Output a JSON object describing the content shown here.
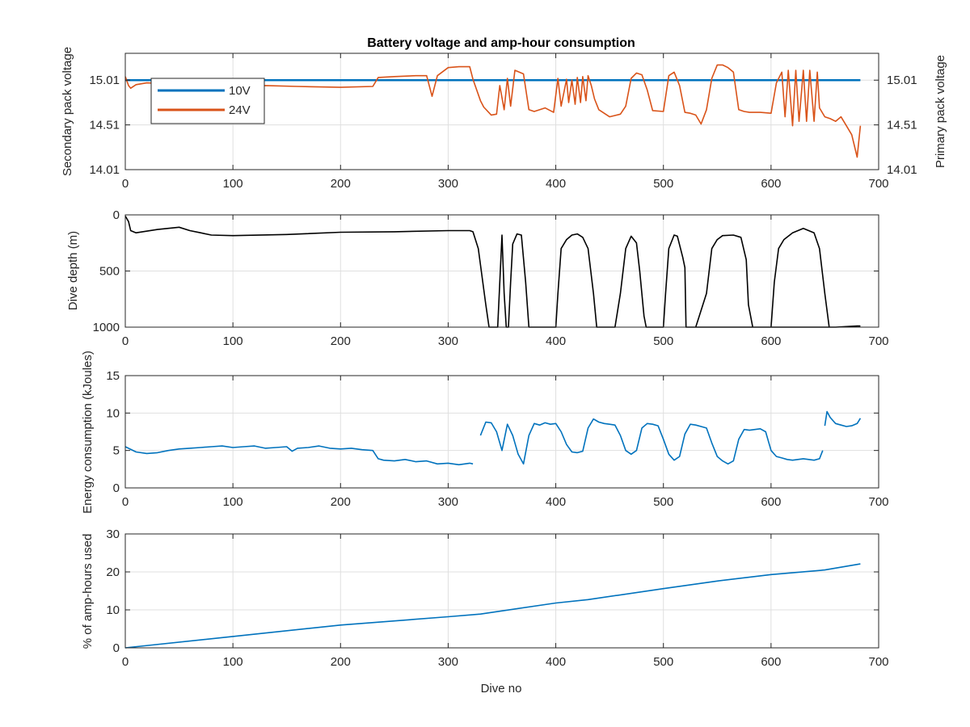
{
  "colors": {
    "blue": "#0072BD",
    "orange": "#D95319",
    "black": "#000000",
    "grid": "#dfdfdf",
    "axis": "#262626"
  },
  "chart_data": [
    {
      "type": "line",
      "title": "Battery voltage and amp-hour consumption",
      "xlabel": "",
      "ylabel_left": "Secondary pack voltage",
      "ylabel_right": "Primary pack voltage",
      "xlim": [
        0,
        700
      ],
      "ylim_left": [
        14.01,
        15.31
      ],
      "ylim_right": [
        14.01,
        15.31
      ],
      "xticks": [
        0,
        100,
        200,
        300,
        400,
        500,
        600,
        700
      ],
      "xtick_labels": [
        "0",
        "100",
        "200",
        "300",
        "400",
        "500",
        "600",
        "700"
      ],
      "yticks_left": [
        14.01,
        14.51,
        15.01
      ],
      "ytick_labels_left": [
        "14.01",
        "14.51",
        "15.01"
      ],
      "yticks_right": [
        14.01,
        14.51,
        15.01
      ],
      "ytick_labels_right": [
        "14.01",
        "14.51",
        "15.01"
      ],
      "grid": true,
      "legend": "top-left",
      "series": [
        {
          "name": "10V",
          "axis": "left",
          "color": "#0072BD",
          "x": [
            0,
            683
          ],
          "y": [
            15.01,
            15.01
          ]
        },
        {
          "name": "24V",
          "axis": "right",
          "color": "#D95319",
          "x": [
            0,
            3,
            5,
            10,
            20,
            40,
            60,
            80,
            100,
            130,
            160,
            200,
            230,
            235,
            250,
            270,
            280,
            285,
            290,
            300,
            310,
            320,
            323,
            330,
            333,
            340,
            345,
            348,
            352,
            355,
            358,
            362,
            370,
            375,
            380,
            390,
            398,
            402,
            405,
            410,
            412,
            415,
            418,
            420,
            423,
            425,
            428,
            430,
            433,
            436,
            440,
            450,
            460,
            465,
            470,
            475,
            480,
            485,
            490,
            500,
            505,
            510,
            515,
            520,
            525,
            530,
            535,
            540,
            545,
            550,
            555,
            560,
            565,
            570,
            575,
            580,
            590,
            600,
            605,
            610,
            613,
            616,
            620,
            623,
            626,
            630,
            633,
            636,
            640,
            643,
            645,
            650,
            655,
            660,
            665,
            670,
            675,
            680,
            683
          ],
          "y": [
            15.05,
            14.95,
            14.92,
            14.96,
            14.98,
            14.97,
            14.95,
            14.96,
            14.94,
            14.95,
            14.94,
            14.93,
            14.94,
            15.04,
            15.05,
            15.06,
            15.06,
            14.83,
            15.06,
            15.15,
            15.16,
            15.16,
            15.02,
            14.78,
            14.71,
            14.62,
            14.63,
            14.95,
            14.68,
            15.03,
            14.72,
            15.12,
            15.08,
            14.68,
            14.66,
            14.7,
            14.65,
            15.03,
            14.72,
            15.02,
            14.76,
            15.01,
            14.74,
            15.04,
            14.76,
            15.05,
            14.78,
            15.06,
            14.95,
            14.8,
            14.68,
            14.6,
            14.63,
            14.72,
            15.03,
            15.09,
            15.07,
            14.9,
            14.67,
            14.66,
            15.06,
            15.1,
            14.95,
            14.65,
            14.64,
            14.62,
            14.52,
            14.68,
            15.03,
            15.18,
            15.18,
            15.15,
            15.1,
            14.68,
            14.66,
            14.65,
            14.65,
            14.64,
            14.98,
            15.1,
            14.6,
            15.12,
            14.5,
            15.12,
            14.55,
            15.12,
            14.55,
            15.12,
            14.55,
            15.1,
            14.7,
            14.6,
            14.58,
            14.55,
            14.6,
            14.5,
            14.4,
            14.15,
            14.5
          ]
        }
      ]
    },
    {
      "type": "line",
      "title": "",
      "xlabel": "",
      "ylabel": "Dive depth (m)",
      "xlim": [
        0,
        700
      ],
      "ylim": [
        0,
        1000
      ],
      "reversed_y": true,
      "xticks": [
        0,
        100,
        200,
        300,
        400,
        500,
        600,
        700
      ],
      "xtick_labels": [
        "0",
        "100",
        "200",
        "300",
        "400",
        "500",
        "600",
        "700"
      ],
      "yticks": [
        0,
        500,
        1000
      ],
      "ytick_labels": [
        "0",
        "500",
        "1000"
      ],
      "grid": true,
      "series": [
        {
          "color": "#000000",
          "x": [
            0,
            3,
            5,
            10,
            30,
            50,
            60,
            70,
            80,
            100,
            150,
            200,
            250,
            300,
            310,
            320,
            323,
            328,
            335,
            338,
            342,
            346,
            348,
            350,
            352,
            354,
            356,
            358,
            360,
            364,
            368,
            372,
            375,
            380,
            395,
            400,
            402,
            405,
            410,
            415,
            420,
            425,
            430,
            435,
            438,
            442,
            445,
            455,
            460,
            465,
            470,
            475,
            478,
            482,
            484,
            495,
            500,
            502,
            505,
            510,
            513,
            518,
            520,
            521,
            573,
            575,
            580,
            585,
            590,
            595,
            598,
            600,
            610,
            650,
            660,
            680,
            683
          ],
          "y": [
            10,
            60,
            140,
            160,
            130,
            110,
            140,
            160,
            180,
            185,
            175,
            155,
            150,
            140,
            140,
            140,
            150,
            300,
            800,
            1000,
            1000,
            1000,
            600,
            180,
            700,
            1000,
            1000,
            600,
            260,
            170,
            180,
            600,
            1000,
            1000,
            1000,
            1000,
            700,
            300,
            220,
            180,
            170,
            200,
            300,
            700,
            1000,
            1000,
            1000,
            1000,
            700,
            300,
            190,
            250,
            500,
            900,
            1000,
            1000,
            1000,
            700,
            300,
            180,
            190,
            380,
            470,
            1000,
            1000,
            1000,
            1000,
            1000,
            1000,
            1000,
            1000,
            1000,
            1000,
            1000,
            1000,
            990,
            990
          ]
        },
        {
          "color": "#000000",
          "x": [
            530,
            540,
            545,
            550,
            555,
            565,
            572,
            577,
            579,
            583
          ],
          "y": [
            1000,
            700,
            300,
            220,
            185,
            180,
            200,
            400,
            800,
            1000
          ]
        },
        {
          "color": "#000000",
          "x": [
            600,
            603,
            607,
            612,
            620,
            630,
            640,
            645,
            650,
            654
          ],
          "y": [
            1000,
            600,
            300,
            220,
            160,
            120,
            160,
            300,
            700,
            1000
          ]
        }
      ]
    },
    {
      "type": "line",
      "title": "",
      "xlabel": "",
      "ylabel": "Energy consumption (kJoules)",
      "xlim": [
        0,
        700
      ],
      "ylim": [
        0,
        15
      ],
      "xticks": [
        0,
        100,
        200,
        300,
        400,
        500,
        600,
        700
      ],
      "xtick_labels": [
        "0",
        "100",
        "200",
        "300",
        "400",
        "500",
        "600",
        "700"
      ],
      "yticks": [
        0,
        5,
        10,
        15
      ],
      "ytick_labels": [
        "0",
        "5",
        "10",
        "15"
      ],
      "grid": true,
      "series": [
        {
          "color": "#0072BD",
          "x": [
            0,
            10,
            20,
            30,
            40,
            50,
            60,
            70,
            80,
            90,
            100,
            110,
            120,
            130,
            140,
            150,
            155,
            160,
            170,
            180,
            190,
            200,
            210,
            220,
            230,
            235,
            240,
            250,
            260,
            270,
            280,
            290,
            300,
            310,
            320,
            323
          ],
          "y": [
            5.5,
            4.8,
            4.6,
            4.7,
            5.0,
            5.2,
            5.3,
            5.4,
            5.5,
            5.6,
            5.4,
            5.5,
            5.6,
            5.3,
            5.4,
            5.5,
            4.9,
            5.3,
            5.4,
            5.6,
            5.3,
            5.2,
            5.3,
            5.1,
            5.0,
            3.9,
            3.7,
            3.6,
            3.8,
            3.5,
            3.6,
            3.2,
            3.3,
            3.1,
            3.3,
            3.2
          ]
        },
        {
          "color": "#0072BD",
          "x": [
            330,
            335,
            340,
            345,
            350,
            355,
            360,
            365,
            370,
            375,
            380,
            385,
            390,
            395,
            400,
            405,
            410,
            415,
            420,
            425,
            430,
            435,
            440,
            445,
            450,
            455,
            460,
            465,
            470,
            475,
            480,
            485,
            490,
            495,
            500,
            505,
            510,
            515,
            520,
            525,
            530,
            535,
            540,
            545,
            550,
            555,
            560,
            565,
            570,
            575,
            580,
            585,
            590,
            595,
            600,
            605,
            610,
            615,
            620,
            625,
            630,
            635,
            640,
            645,
            648
          ],
          "y": [
            7.0,
            8.8,
            8.7,
            7.5,
            5.0,
            8.5,
            7.0,
            4.5,
            3.2,
            7.0,
            8.6,
            8.4,
            8.7,
            8.5,
            8.6,
            7.5,
            5.8,
            4.8,
            4.7,
            4.9,
            8.0,
            9.2,
            8.8,
            8.6,
            8.5,
            8.4,
            7.0,
            5.0,
            4.5,
            5.0,
            8.0,
            8.6,
            8.5,
            8.3,
            6.5,
            4.5,
            3.7,
            4.2,
            7.2,
            8.5,
            8.4,
            8.2,
            8.0,
            6.0,
            4.2,
            3.6,
            3.2,
            3.6,
            6.5,
            7.8,
            7.7,
            7.8,
            7.9,
            7.5,
            5.0,
            4.2,
            4.0,
            3.8,
            3.7,
            3.8,
            3.9,
            3.8,
            3.7,
            3.9,
            5.0
          ]
        },
        {
          "color": "#0072BD",
          "x": [
            650,
            652,
            655,
            660,
            665,
            670,
            675,
            680,
            683
          ],
          "y": [
            8.3,
            10.2,
            9.4,
            8.6,
            8.4,
            8.2,
            8.3,
            8.6,
            9.3
          ]
        }
      ]
    },
    {
      "type": "line",
      "title": "",
      "xlabel": "Dive no",
      "ylabel": "% of amp-hours used",
      "xlim": [
        0,
        700
      ],
      "ylim": [
        0,
        30
      ],
      "xticks": [
        0,
        100,
        200,
        300,
        400,
        500,
        600,
        700
      ],
      "xtick_labels": [
        "0",
        "100",
        "200",
        "300",
        "400",
        "500",
        "600",
        "700"
      ],
      "yticks": [
        0,
        10,
        20,
        30
      ],
      "ytick_labels": [
        "0",
        "10",
        "20",
        "30"
      ],
      "grid": true,
      "series": [
        {
          "color": "#0072BD",
          "x": [
            0,
            100,
            200,
            300,
            330,
            400,
            430,
            500,
            550,
            600,
            650,
            683
          ],
          "y": [
            0,
            3.0,
            6.0,
            8.2,
            8.9,
            11.8,
            12.7,
            15.6,
            17.6,
            19.3,
            20.5,
            22.1
          ]
        }
      ]
    }
  ]
}
